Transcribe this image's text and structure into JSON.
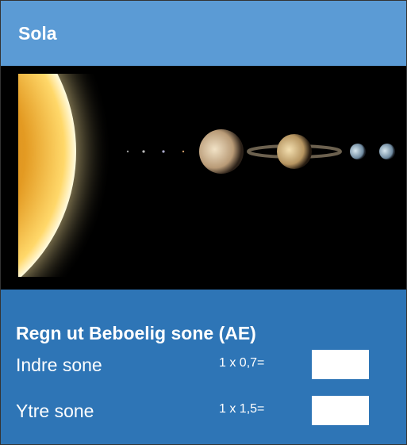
{
  "header": {
    "title": "Sola"
  },
  "section": {
    "title": "Regn ut Beboelig sone (AE)",
    "rows": [
      {
        "label": "Indre sone",
        "formula": "1 x 0,7="
      },
      {
        "label": "Ytre sone",
        "formula": "1 x 1,5="
      }
    ]
  }
}
